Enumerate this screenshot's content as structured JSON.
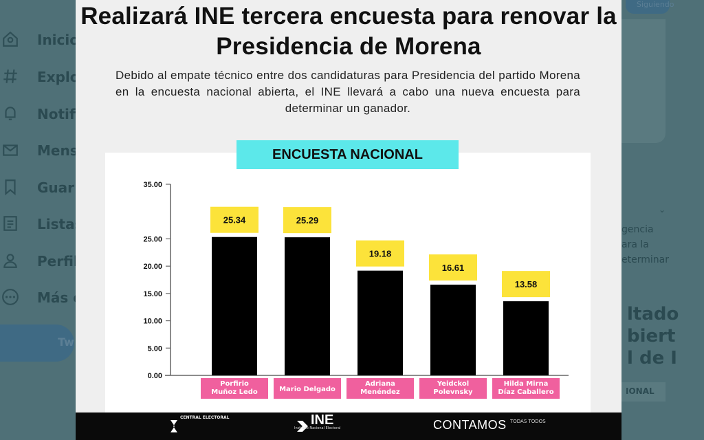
{
  "background": {
    "nav": [
      {
        "label": "Inicio",
        "icon": "home-icon"
      },
      {
        "label": "Explo",
        "icon": "hashtag-icon"
      },
      {
        "label": "Notifi",
        "icon": "bell-icon"
      },
      {
        "label": "Mens",
        "icon": "mail-icon"
      },
      {
        "label": "Guar",
        "icon": "bookmark-icon"
      },
      {
        "label": "Listas",
        "icon": "list-icon"
      },
      {
        "label": "Perfil",
        "icon": "person-icon"
      },
      {
        "label": "Más o",
        "icon": "more-icon"
      }
    ],
    "tweet_button": "Tw",
    "right_pill": "Siguiendo",
    "right_text": [
      "gencia",
      "ara la",
      "eterminar"
    ],
    "right_big": [
      "ltado",
      "biert",
      "l de I"
    ],
    "right_badge": "IONAL"
  },
  "headline": "Realizará INE tercera encuesta para renovar la Presidencia de Morena",
  "subtitle": "Debido al empate técnico entre dos candidaturas para Presidencia del partido Morena en la encuesta nacional abierta, el INE llevará a cabo una nueva encuesta para determinar un ganador.",
  "chart_data": {
    "type": "bar",
    "title": "ENCUESTA NACIONAL",
    "categories": [
      [
        "Porfirio",
        "Muñoz Ledo"
      ],
      [
        "Mario Delgado"
      ],
      [
        "Adriana",
        "Menéndez"
      ],
      [
        "Yeidckol",
        "Polevnsky"
      ],
      [
        "Hilda Mirna",
        "Díaz Caballero"
      ]
    ],
    "values": [
      25.34,
      25.29,
      19.18,
      16.61,
      13.58
    ],
    "value_labels": [
      "25.34",
      "25.29",
      "19.18",
      "16.61",
      "13.58"
    ],
    "ylim": [
      0,
      35
    ],
    "yticks": [
      "0.00",
      "5.00",
      "10.00",
      "15.00",
      "20.00",
      "25.00",
      "35.00"
    ],
    "ytick_values": [
      0,
      5,
      10,
      15,
      20,
      25,
      35
    ],
    "bar_color": "#000000",
    "label_box_color": "#fce33a",
    "category_box_color": "#f0609e",
    "xlabel": "",
    "ylabel": ""
  },
  "footer": {
    "central_electoral": "CENTRAL ELECTORAL",
    "ine": "INE",
    "ine_sub": "Instituto Nacional Electoral",
    "contamos": "CONTAMOS",
    "contamos_small": "TODAS TODOS"
  }
}
